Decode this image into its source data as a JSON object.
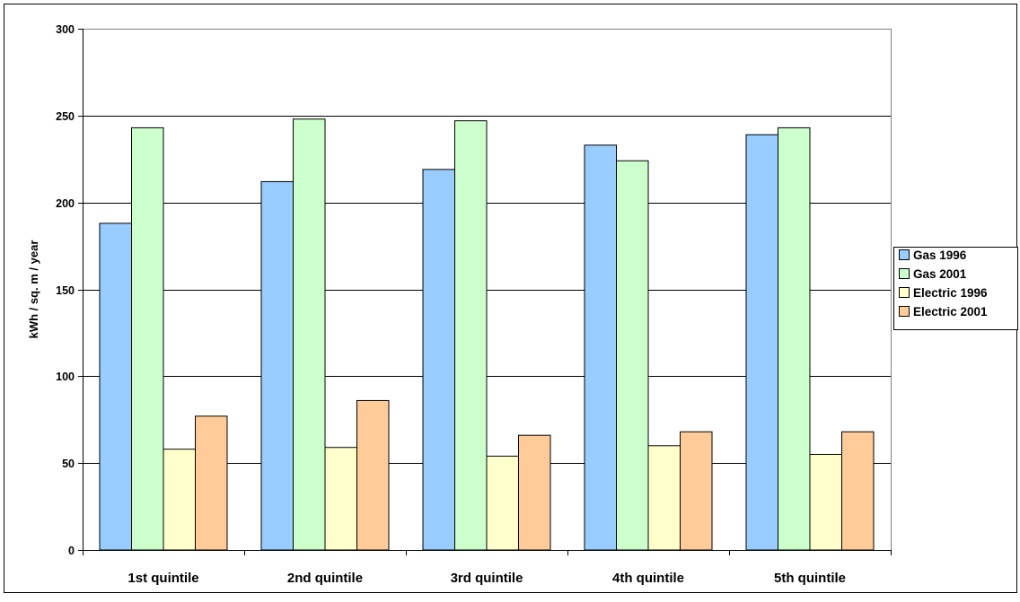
{
  "chart_data": {
    "type": "bar",
    "title": "",
    "xlabel": "",
    "ylabel": "kWh / sq. m / year",
    "ylim": [
      0,
      300
    ],
    "yticks": [
      0,
      50,
      100,
      150,
      200,
      250,
      300
    ],
    "grid": true,
    "legend_position": "right",
    "categories": [
      "1st quintile",
      "2nd quintile",
      "3rd quintile",
      "4th quintile",
      "5th quintile"
    ],
    "series": [
      {
        "name": "Gas 1996",
        "color": "#99CCFF",
        "values": [
          188,
          212,
          219,
          233,
          239
        ]
      },
      {
        "name": "Gas 2001",
        "color": "#CCFFCC",
        "values": [
          243,
          248,
          247,
          224,
          243
        ]
      },
      {
        "name": "Electric 1996",
        "color": "#FFFFCC",
        "values": [
          58,
          59,
          54,
          60,
          55
        ]
      },
      {
        "name": "Electric 2001",
        "color": "#FFCC99",
        "values": [
          77,
          86,
          66,
          68,
          68
        ]
      }
    ]
  }
}
